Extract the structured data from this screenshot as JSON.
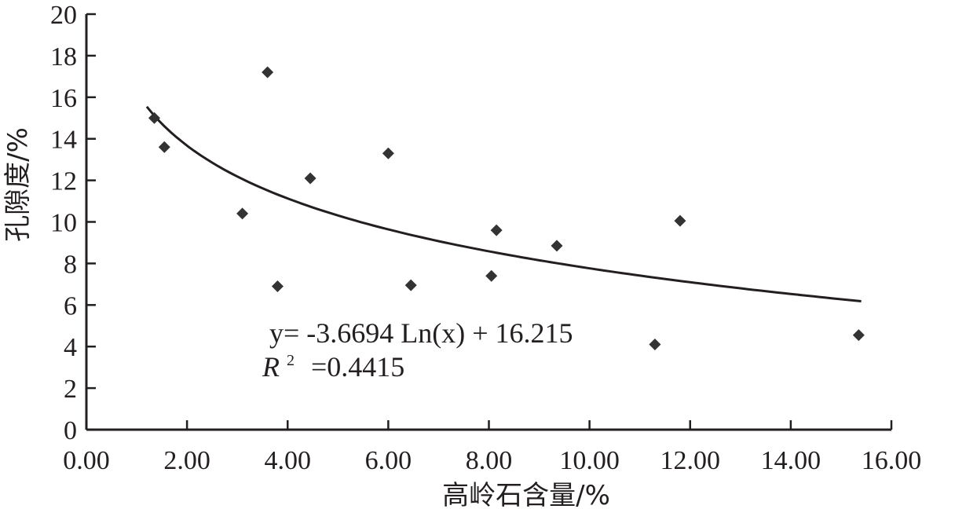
{
  "chart_data": {
    "type": "scatter",
    "xlabel": "高岭石含量/%",
    "ylabel": "孔隙度/%",
    "xlim": [
      0,
      16
    ],
    "ylim": [
      0,
      20
    ],
    "x_ticks": [
      "0.00",
      "2.00",
      "4.00",
      "6.00",
      "8.00",
      "10.00",
      "12.00",
      "14.00",
      "16.00"
    ],
    "y_ticks": [
      "0",
      "2",
      "4",
      "6",
      "8",
      "10",
      "12",
      "14",
      "16",
      "18",
      "20"
    ],
    "points": [
      {
        "x": 1.35,
        "y": 15.0
      },
      {
        "x": 1.55,
        "y": 13.6
      },
      {
        "x": 3.1,
        "y": 10.4
      },
      {
        "x": 3.6,
        "y": 17.2
      },
      {
        "x": 3.8,
        "y": 6.9
      },
      {
        "x": 4.45,
        "y": 12.1
      },
      {
        "x": 6.0,
        "y": 13.3
      },
      {
        "x": 6.45,
        "y": 6.95
      },
      {
        "x": 8.05,
        "y": 7.4
      },
      {
        "x": 8.15,
        "y": 9.6
      },
      {
        "x": 9.35,
        "y": 8.85
      },
      {
        "x": 11.3,
        "y": 4.1
      },
      {
        "x": 11.8,
        "y": 10.05
      },
      {
        "x": 15.35,
        "y": 4.55
      }
    ],
    "trendline": {
      "type": "logarithmic",
      "a": -3.6694,
      "b": 16.215,
      "x_range": [
        1.2,
        15.4
      ],
      "equation": "y= -3.6694 Ln(x) + 16.215",
      "r2_prefix": "R",
      "r2_exp": "2",
      "r2_value": "=0.4415"
    },
    "grid": false
  },
  "colors": {
    "axis": "#231f20",
    "marker": "#333333",
    "line": "#231f20"
  }
}
